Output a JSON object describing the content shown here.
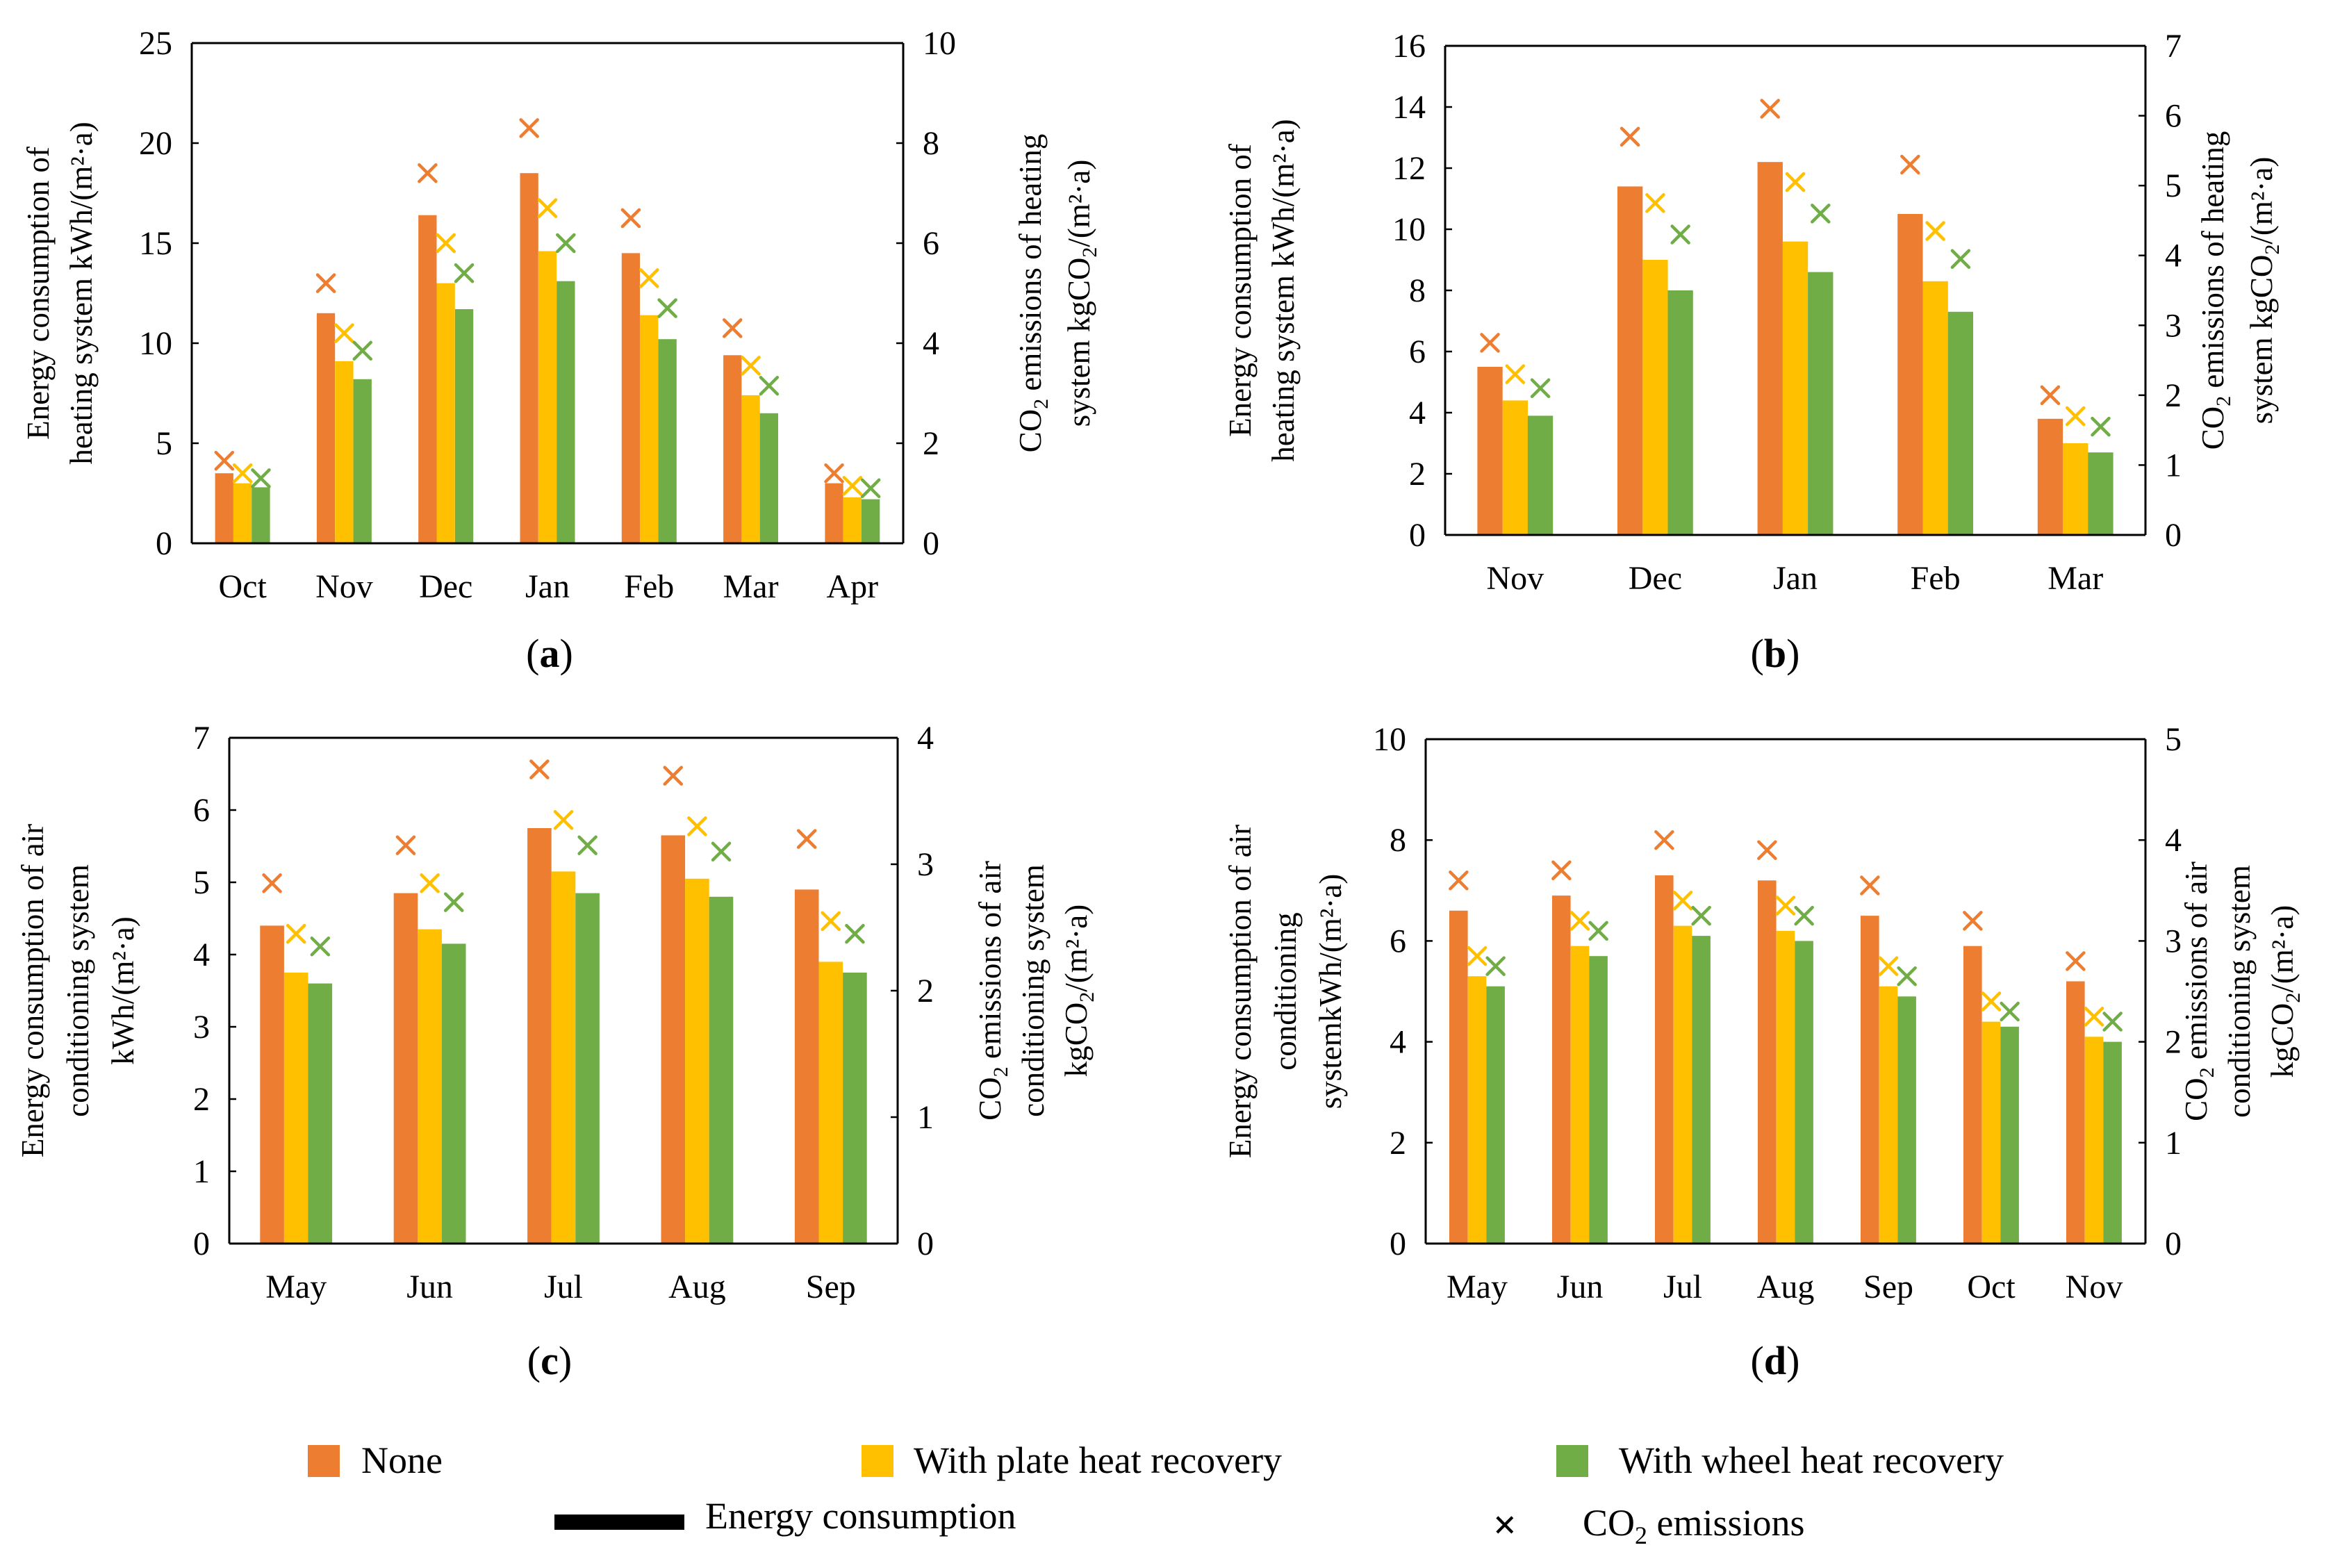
{
  "colors": {
    "none": "#ED7D31",
    "plate": "#FFC000",
    "wheel": "#70AD47",
    "axis": "#000000",
    "text": "#000000"
  },
  "legend": {
    "none": "None",
    "plate": "With plate heat recovery",
    "wheel": "With wheel heat recovery",
    "energy": "Energy consumption",
    "co2_symbol": "×",
    "co2_prefix": "CO",
    "co2_sub": "2",
    "co2_suffix": " emissions"
  },
  "chart_data": [
    {
      "panel": "a",
      "label": "a",
      "type": "bar",
      "title": "",
      "categories": [
        "Oct",
        "Nov",
        "Dec",
        "Jan",
        "Feb",
        "Mar",
        "Apr"
      ],
      "series": [
        {
          "name": "None",
          "key": "none",
          "values": [
            3.5,
            11.5,
            16.4,
            18.5,
            14.5,
            9.4,
            3.0
          ]
        },
        {
          "name": "With plate heat recovery",
          "key": "plate",
          "values": [
            3.0,
            9.1,
            13.0,
            14.6,
            11.4,
            7.4,
            2.3
          ]
        },
        {
          "name": "With wheel heat recovery",
          "key": "wheel",
          "values": [
            2.8,
            8.2,
            11.7,
            13.1,
            10.2,
            6.5,
            2.2
          ]
        }
      ],
      "co2_series": [
        {
          "name": "None",
          "key": "none",
          "values": [
            1.65,
            5.2,
            7.4,
            8.3,
            6.5,
            4.3,
            1.4
          ]
        },
        {
          "name": "With plate heat recovery",
          "key": "plate",
          "values": [
            1.4,
            4.2,
            6.0,
            6.7,
            5.3,
            3.55,
            1.15
          ]
        },
        {
          "name": "With wheel heat recovery",
          "key": "wheel",
          "values": [
            1.3,
            3.85,
            5.4,
            6.0,
            4.7,
            3.15,
            1.1
          ]
        }
      ],
      "ylim": [
        0,
        25
      ],
      "yticks": [
        0,
        5,
        10,
        15,
        20,
        25
      ],
      "y2lim": [
        0,
        10
      ],
      "y2ticks": [
        0,
        2,
        4,
        6,
        8,
        10
      ],
      "ylabel": [
        "Energy consumption of",
        "heating system kWh/(m²·a)"
      ],
      "y2label": [
        {
          "parts": [
            [
              "CO",
              "n"
            ],
            [
              "2",
              "sub"
            ],
            [
              " emissions of heating",
              "n"
            ]
          ]
        },
        {
          "parts": [
            [
              "system kgCO",
              "n"
            ],
            [
              "2",
              "sub"
            ],
            [
              "/(m²·a)",
              "n"
            ]
          ]
        }
      ]
    },
    {
      "panel": "b",
      "label": "b",
      "type": "bar",
      "title": "",
      "categories": [
        "Nov",
        "Dec",
        "Jan",
        "Feb",
        "Mar"
      ],
      "series": [
        {
          "name": "None",
          "key": "none",
          "values": [
            5.5,
            11.4,
            12.2,
            10.5,
            3.8
          ]
        },
        {
          "name": "With plate heat recovery",
          "key": "plate",
          "values": [
            4.4,
            9.0,
            9.6,
            8.3,
            3.0
          ]
        },
        {
          "name": "With wheel heat recovery",
          "key": "wheel",
          "values": [
            3.9,
            8.0,
            8.6,
            7.3,
            2.7
          ]
        }
      ],
      "co2_series": [
        {
          "name": "None",
          "key": "none",
          "values": [
            2.75,
            5.7,
            6.1,
            5.3,
            2.0
          ]
        },
        {
          "name": "With plate heat recovery",
          "key": "plate",
          "values": [
            2.3,
            4.75,
            5.05,
            4.35,
            1.7
          ]
        },
        {
          "name": "With wheel heat recovery",
          "key": "wheel",
          "values": [
            2.1,
            4.3,
            4.6,
            3.95,
            1.55
          ]
        }
      ],
      "ylim": [
        0,
        16
      ],
      "yticks": [
        0,
        2,
        4,
        6,
        8,
        10,
        12,
        14,
        16
      ],
      "y2lim": [
        0,
        7
      ],
      "y2ticks": [
        0,
        1,
        2,
        3,
        4,
        5,
        6,
        7
      ],
      "ylabel": [
        "Energy consumption of",
        "heating system kWh/(m²·a)"
      ],
      "y2label": [
        {
          "parts": [
            [
              "CO",
              "n"
            ],
            [
              "2",
              "sub"
            ],
            [
              " emissions of heating",
              "n"
            ]
          ]
        },
        {
          "parts": [
            [
              "system kgCO",
              "n"
            ],
            [
              "2",
              "sub"
            ],
            [
              "/(m²·a)",
              "n"
            ]
          ]
        }
      ]
    },
    {
      "panel": "c",
      "label": "c",
      "type": "bar",
      "title": "",
      "categories": [
        "May",
        "Jun",
        "Jul",
        "Aug",
        "Sep"
      ],
      "series": [
        {
          "name": "None",
          "key": "none",
          "values": [
            4.4,
            4.85,
            5.75,
            5.65,
            4.9
          ]
        },
        {
          "name": "With plate heat recovery",
          "key": "plate",
          "values": [
            3.75,
            4.35,
            5.15,
            5.05,
            3.9
          ]
        },
        {
          "name": "With wheel heat recovery",
          "key": "wheel",
          "values": [
            3.6,
            4.15,
            4.85,
            4.8,
            3.75
          ]
        }
      ],
      "co2_series": [
        {
          "name": "None",
          "key": "none",
          "values": [
            2.85,
            3.15,
            3.75,
            3.7,
            3.2
          ]
        },
        {
          "name": "With plate heat recovery",
          "key": "plate",
          "values": [
            2.45,
            2.85,
            3.35,
            3.3,
            2.55
          ]
        },
        {
          "name": "With wheel heat recovery",
          "key": "wheel",
          "values": [
            2.35,
            2.7,
            3.15,
            3.1,
            2.45
          ]
        }
      ],
      "ylim": [
        0,
        7
      ],
      "yticks": [
        0,
        1,
        2,
        3,
        4,
        5,
        6,
        7
      ],
      "y2lim": [
        0,
        4
      ],
      "y2ticks": [
        0,
        1,
        2,
        3,
        4
      ],
      "ylabel": [
        "Energy consumption of air",
        "conditioning system",
        "kWh/(m²·a)"
      ],
      "y2label": [
        {
          "parts": [
            [
              "CO",
              "n"
            ],
            [
              "2",
              "sub"
            ],
            [
              " emissions of air",
              "n"
            ]
          ]
        },
        {
          "parts": [
            [
              "conditioning system",
              "n"
            ]
          ]
        },
        {
          "parts": [
            [
              "kgCO",
              "n"
            ],
            [
              "2",
              "sub"
            ],
            [
              "/(m²·a)",
              "n"
            ]
          ]
        }
      ]
    },
    {
      "panel": "d",
      "label": "d",
      "type": "bar",
      "title": "",
      "categories": [
        "May",
        "Jun",
        "Jul",
        "Aug",
        "Sep",
        "Oct",
        "Nov"
      ],
      "series": [
        {
          "name": "None",
          "key": "none",
          "values": [
            6.6,
            6.9,
            7.3,
            7.2,
            6.5,
            5.9,
            5.2
          ]
        },
        {
          "name": "With plate heat recovery",
          "key": "plate",
          "values": [
            5.3,
            5.9,
            6.3,
            6.2,
            5.1,
            4.4,
            4.1
          ]
        },
        {
          "name": "With wheel heat recovery",
          "key": "wheel",
          "values": [
            5.1,
            5.7,
            6.1,
            6.0,
            4.9,
            4.3,
            4.0
          ]
        }
      ],
      "co2_series": [
        {
          "name": "None",
          "key": "none",
          "values": [
            3.6,
            3.7,
            4.0,
            3.9,
            3.55,
            3.2,
            2.8
          ]
        },
        {
          "name": "With plate heat recovery",
          "key": "plate",
          "values": [
            2.85,
            3.2,
            3.4,
            3.35,
            2.75,
            2.4,
            2.25
          ]
        },
        {
          "name": "With wheel heat recovery",
          "key": "wheel",
          "values": [
            2.75,
            3.1,
            3.25,
            3.25,
            2.65,
            2.3,
            2.2
          ]
        }
      ],
      "ylim": [
        0,
        10
      ],
      "yticks": [
        0,
        2,
        4,
        6,
        8,
        10
      ],
      "y2lim": [
        0,
        5
      ],
      "y2ticks": [
        0,
        1,
        2,
        3,
        4,
        5
      ],
      "ylabel": [
        "Energy consumption of air",
        "conditioning",
        "systemkWh/(m²·a)"
      ],
      "y2label": [
        {
          "parts": [
            [
              "CO",
              "n"
            ],
            [
              "2",
              "sub"
            ],
            [
              " emissions of air",
              "n"
            ]
          ]
        },
        {
          "parts": [
            [
              "conditioning system",
              "n"
            ]
          ]
        },
        {
          "parts": [
            [
              "kgCO",
              "n"
            ],
            [
              "2",
              "sub"
            ],
            [
              "/(m²·a)",
              "n"
            ]
          ]
        }
      ]
    }
  ]
}
